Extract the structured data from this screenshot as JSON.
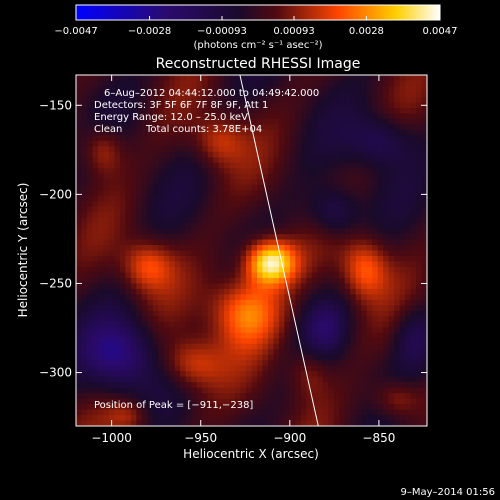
{
  "chart_data": {
    "type": "heatmap",
    "title": "Reconstructed RHESSI Image",
    "xlabel": "Heliocentric X (arcsec)",
    "ylabel": "Heliocentric Y (arcsec)",
    "xlim": [
      -1020,
      -823
    ],
    "ylim": [
      -330,
      -133
    ],
    "x_ticks": [
      -1000,
      -950,
      -900,
      -850
    ],
    "x_tick_labels": [
      "−1000",
      "−950",
      "−900",
      "−850"
    ],
    "y_ticks": [
      -150,
      -200,
      -250,
      -300
    ],
    "y_tick_labels": [
      "−150",
      "−200",
      "−250",
      "−300"
    ],
    "colorbar": {
      "range": [
        -0.0047,
        0.0047
      ],
      "ticks": [
        -0.0047,
        -0.0028,
        -0.00093,
        0.00093,
        0.0028,
        0.0047
      ],
      "tick_labels": [
        "−0.0047",
        "−0.0028",
        "−0.00093",
        "0.00093",
        "0.0028",
        "0.0047"
      ],
      "units_label": "(photons cm⁻² s⁻¹ asec⁻²)",
      "colors": [
        "#0000ff",
        "#2a0a6e",
        "#1a0a2a",
        "#500a10",
        "#ff4500",
        "#ffd000",
        "#ffffff"
      ]
    },
    "annotations": {
      "time_range": "6–Aug–2012 04:44:12.000 to 04:49:42.000",
      "detectors": "Detectors: 3F 5F 6F 7F 8F 9F, Att 1",
      "energy_range": "Energy Range: 12.0 – 25.0 keV",
      "method": "Clean",
      "total_counts": "Total counts: 3.78E+04",
      "peak": "Position of Peak = [−911,−238]"
    },
    "peak_position": [
      -911,
      -238
    ],
    "limb_line": [
      [
        -928,
        -133
      ],
      [
        -884,
        -330
      ]
    ],
    "sources": [
      {
        "x": -911,
        "y": -238,
        "amp": 1.0,
        "sx": 10,
        "sy": 9
      },
      {
        "x": -925,
        "y": -265,
        "amp": 0.6,
        "sx": 14,
        "sy": 14
      },
      {
        "x": -980,
        "y": -240,
        "amp": 0.45,
        "sx": 10,
        "sy": 10
      },
      {
        "x": -955,
        "y": -295,
        "amp": 0.4,
        "sx": 12,
        "sy": 10
      },
      {
        "x": -858,
        "y": -242,
        "amp": 0.5,
        "sx": 9,
        "sy": 12
      },
      {
        "x": -940,
        "y": -170,
        "amp": 0.35,
        "sx": 10,
        "sy": 10
      },
      {
        "x": -1005,
        "y": -175,
        "amp": 0.35,
        "sx": 8,
        "sy": 10
      },
      {
        "x": -840,
        "y": -315,
        "amp": 0.35,
        "sx": 10,
        "sy": 8
      },
      {
        "x": -990,
        "y": -325,
        "amp": 0.3,
        "sx": 9,
        "sy": 7
      },
      {
        "x": -890,
        "y": -300,
        "amp": 0.25,
        "sx": 8,
        "sy": 10
      }
    ],
    "negative_regions": [
      {
        "x": -995,
        "y": -290,
        "amp": 0.55,
        "sx": 14,
        "sy": 14
      },
      {
        "x": -875,
        "y": -210,
        "amp": 0.4,
        "sx": 10,
        "sy": 10
      },
      {
        "x": -850,
        "y": -170,
        "amp": 0.35,
        "sx": 12,
        "sy": 10
      },
      {
        "x": -880,
        "y": -275,
        "amp": 0.3,
        "sx": 8,
        "sy": 10
      },
      {
        "x": -830,
        "y": -280,
        "amp": 0.3,
        "sx": 8,
        "sy": 12
      }
    ]
  },
  "footer": {
    "date": "9–May–2014 01:56"
  }
}
